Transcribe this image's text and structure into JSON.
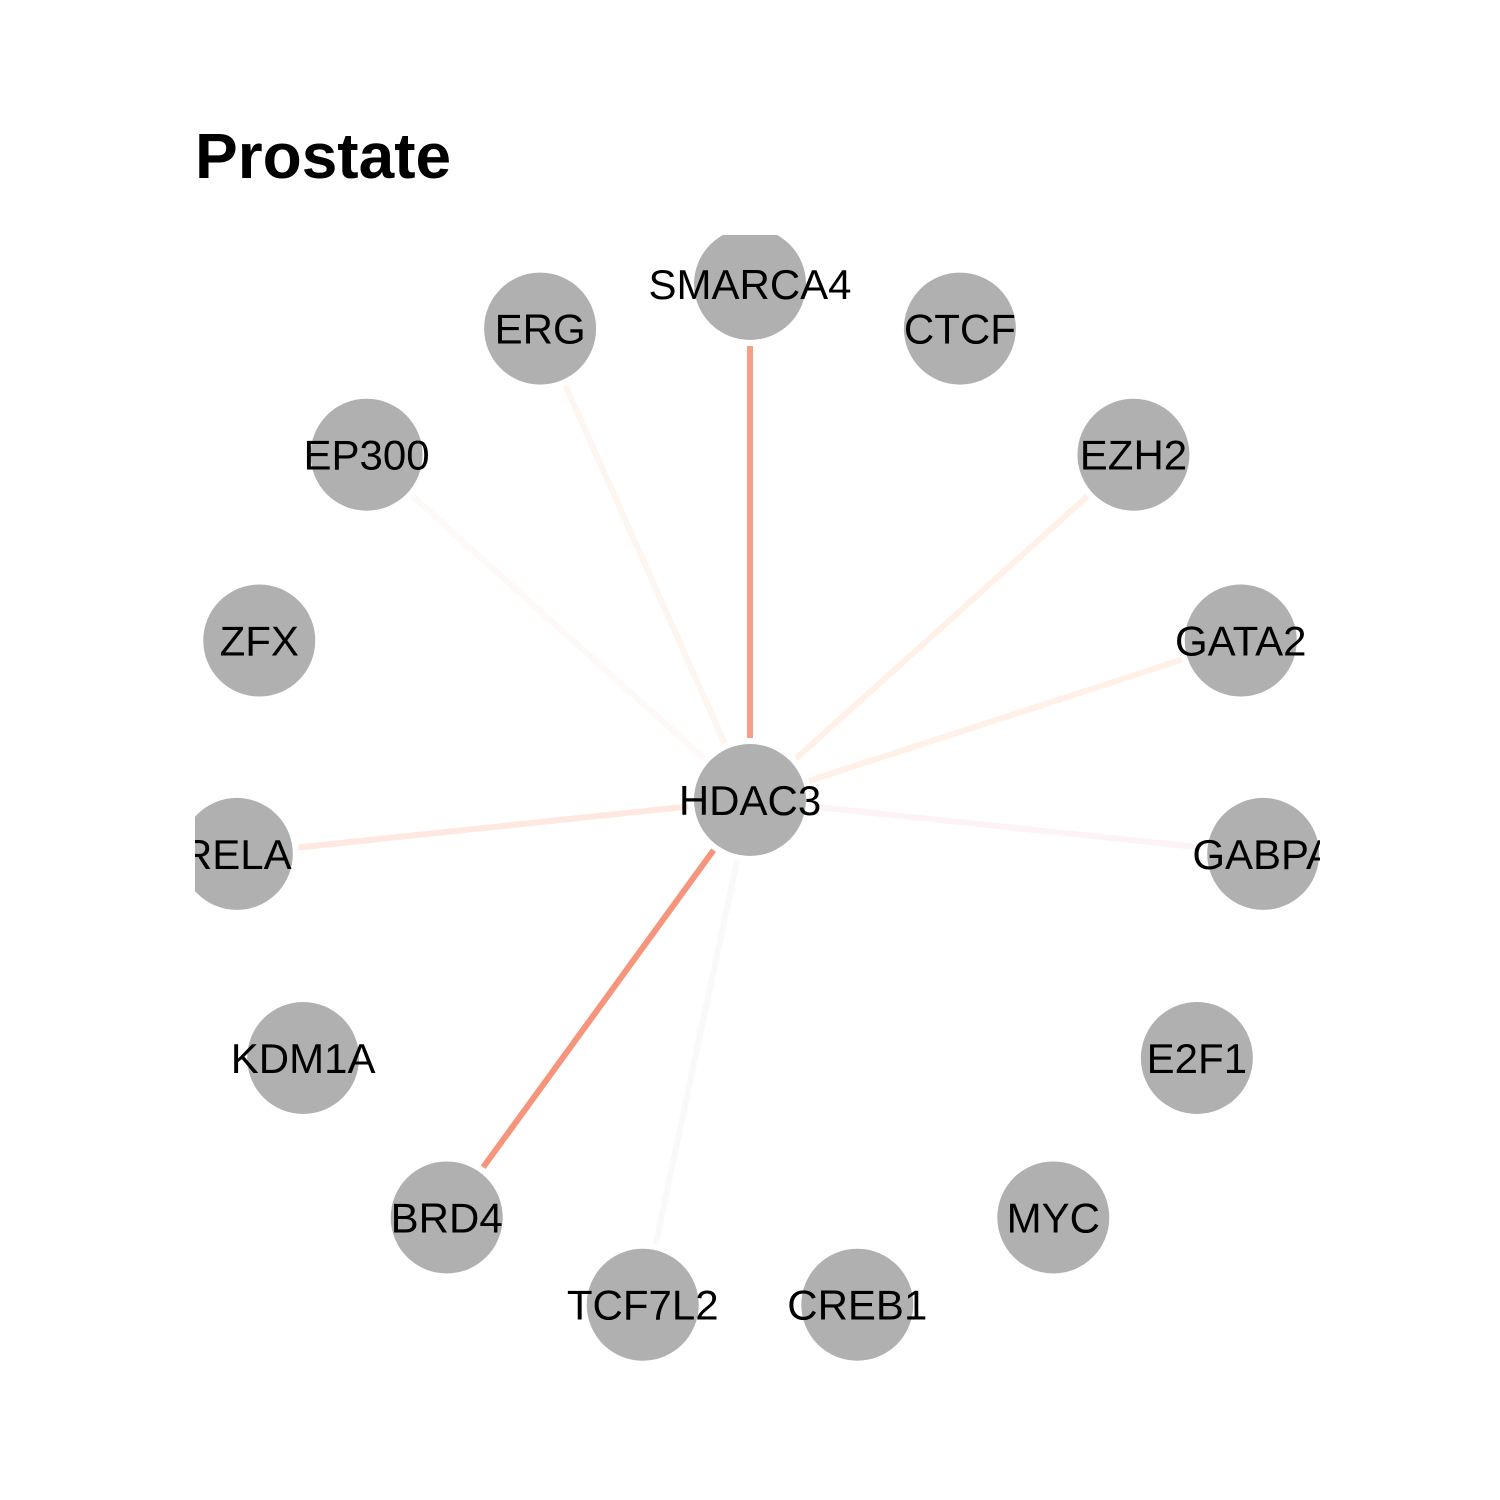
{
  "title": "Prostate",
  "colors": {
    "node_fill": "#b0b0b0",
    "label": "#000000",
    "background": "#ffffff"
  },
  "center": "HDAC3",
  "nodes": [
    "HDAC3",
    "SMARCA4",
    "CTCF",
    "EZH2",
    "GATA2",
    "GABPA",
    "E2F1",
    "MYC",
    "CREB1",
    "TCF7L2",
    "BRD4",
    "KDM1A",
    "RELA",
    "ZFX",
    "EP300",
    "ERG"
  ],
  "edges": [
    {
      "source": "HDAC3",
      "target": "SMARCA4",
      "color": "#f79f85"
    },
    {
      "source": "HDAC3",
      "target": "BRD4",
      "color": "#f7957c"
    },
    {
      "source": "HDAC3",
      "target": "EZH2",
      "color": "#fff0e8"
    },
    {
      "source": "HDAC3",
      "target": "GATA2",
      "color": "#fff0e8"
    },
    {
      "source": "HDAC3",
      "target": "RELA",
      "color": "#fee8e0"
    },
    {
      "source": "HDAC3",
      "target": "ERG",
      "color": "#fdf5f0"
    },
    {
      "source": "HDAC3",
      "target": "EP300",
      "color": "#fef8f6"
    },
    {
      "source": "HDAC3",
      "target": "GABPA",
      "color": "#fdf3f5"
    },
    {
      "source": "HDAC3",
      "target": "TCF7L2",
      "color": "#f9f9fc"
    }
  ]
}
